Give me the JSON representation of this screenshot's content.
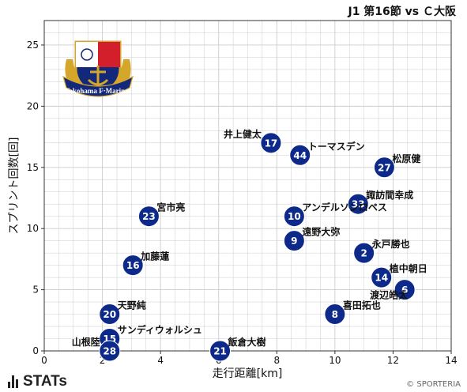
{
  "header": {
    "match_title": "J1 第16節 vs Ｃ大阪"
  },
  "footer": {
    "brand": "STATs",
    "credit": "© SPORTERIA"
  },
  "team_logo": {
    "name": "Yokohama F·Marinos",
    "colors": {
      "navy": "#13287a",
      "red": "#d31f2b",
      "gold": "#d4a62a"
    }
  },
  "colors": {
    "marker": "#0d2a8a",
    "marker_text": "#ffffff",
    "grid": "#cccccc",
    "label": "#111111"
  },
  "chart_data": {
    "type": "scatter",
    "xlabel": "走行距離[km]",
    "ylabel": "スプリント回数[回]",
    "xlim": [
      0,
      14
    ],
    "ylim": [
      0,
      27
    ],
    "xticks": [
      0,
      2,
      4,
      6,
      8,
      10,
      12,
      14
    ],
    "yticks": [
      0,
      5,
      10,
      15,
      20,
      25
    ],
    "grid": true,
    "points": [
      {
        "name": "井上健太",
        "number": "17",
        "x": 7.8,
        "y": 17,
        "label_pos": "left"
      },
      {
        "name": "トーマスデン",
        "number": "44",
        "x": 8.8,
        "y": 16,
        "label_pos": "right"
      },
      {
        "name": "松原健",
        "number": "27",
        "x": 11.7,
        "y": 15,
        "label_pos": "right"
      },
      {
        "name": "諏訪間幸成",
        "number": "33",
        "x": 10.8,
        "y": 12,
        "label_pos": "right"
      },
      {
        "name": "宮市亮",
        "number": "23",
        "x": 3.6,
        "y": 11,
        "label_pos": "right"
      },
      {
        "name": "アンデルソンロペス",
        "number": "10",
        "x": 8.6,
        "y": 11,
        "label_pos": "right"
      },
      {
        "name": "遠野大弥",
        "number": "9",
        "x": 8.6,
        "y": 9,
        "label_pos": "right"
      },
      {
        "name": "永戸勝也",
        "number": "2",
        "x": 11.0,
        "y": 8,
        "label_pos": "right"
      },
      {
        "name": "加藤蓮",
        "number": "16",
        "x": 3.05,
        "y": 7,
        "label_pos": "right"
      },
      {
        "name": "植中朝日",
        "number": "14",
        "x": 11.6,
        "y": 6,
        "label_pos": "right"
      },
      {
        "name": "渡辺皓太",
        "number": "6",
        "x": 12.4,
        "y": 5,
        "label_pos": "left-below"
      },
      {
        "name": "天野純",
        "number": "20",
        "x": 2.25,
        "y": 3,
        "label_pos": "right"
      },
      {
        "name": "喜田拓也",
        "number": "8",
        "x": 10.0,
        "y": 3,
        "label_pos": "right"
      },
      {
        "name": "サンディウォルシュ",
        "number": "15",
        "x": 2.25,
        "y": 1,
        "label_pos": "right"
      },
      {
        "name": "山根陸",
        "number": "28",
        "x": 2.25,
        "y": 0,
        "label_pos": "left"
      },
      {
        "name": "飯倉大樹",
        "number": "21",
        "x": 6.05,
        "y": 0,
        "label_pos": "right"
      }
    ]
  }
}
